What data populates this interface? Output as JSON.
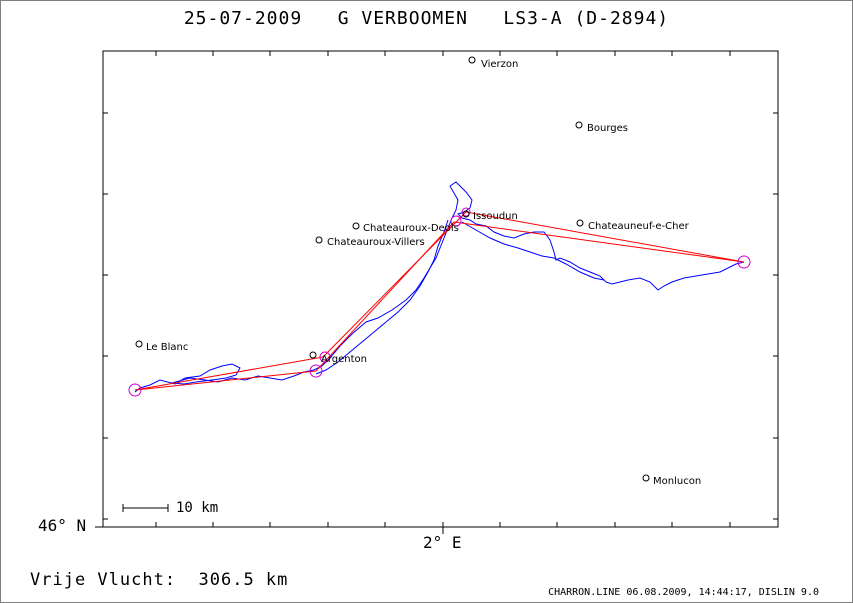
{
  "title": "25-07-2009   G VERBOOMEN   LS3-A (D-2894)",
  "axis": {
    "lat_label": "46° N",
    "lon_label": "2° E"
  },
  "scale_bar": {
    "label": "10 km"
  },
  "footer": {
    "distance_text": "Vrije Vlucht:  306.5 km",
    "program_info": "CHARRON.LINE 06.08.2009, 14:44:17, DISLIN 9.0"
  },
  "towns": [
    {
      "name": "Vierzon"
    },
    {
      "name": "Bourges"
    },
    {
      "name": "Chateauroux-Deols"
    },
    {
      "name": "Chateauroux-Villers"
    },
    {
      "name": "Issoudun"
    },
    {
      "name": "Chateauneuf-e-Cher"
    },
    {
      "name": "Le Blanc"
    },
    {
      "name": "Argenton"
    },
    {
      "name": "Monlucon"
    }
  ],
  "colors": {
    "track": "#0000ff",
    "task_line": "#ff0000",
    "turnpoint": "#cc00cc",
    "frame": "#000000"
  }
}
